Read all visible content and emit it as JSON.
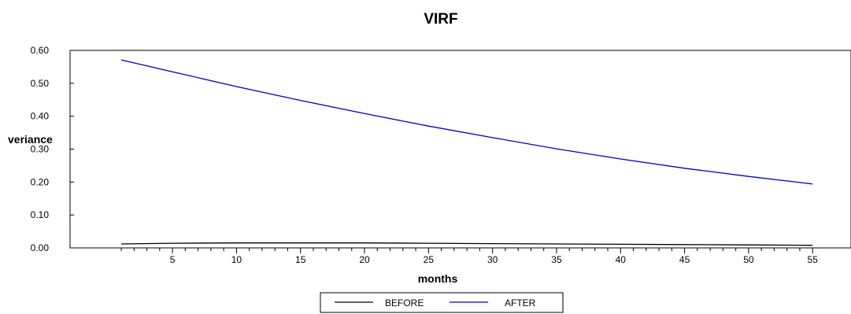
{
  "chart_data": {
    "type": "line",
    "title": "VIRF",
    "xlabel": "months",
    "ylabel": "veriance",
    "xlim": [
      -3,
      58
    ],
    "ylim": [
      0,
      0.6
    ],
    "x_ticks_labeled": [
      5,
      10,
      15,
      20,
      25,
      30,
      35,
      40,
      45,
      50,
      55
    ],
    "x_minor_ticks": [
      1,
      55
    ],
    "y_ticks": [
      0.0,
      0.1,
      0.2,
      0.3,
      0.4,
      0.5,
      0.6
    ],
    "y_tick_labels": [
      "0.00",
      "0.10",
      "0.20",
      "0.30",
      "0.40",
      "0.50",
      "0.60"
    ],
    "grid": false,
    "legend_position": "bottom-center",
    "series": [
      {
        "name": "BEFORE",
        "color": "#000000",
        "x": [
          1,
          5,
          10,
          15,
          20,
          25,
          30,
          35,
          40,
          45,
          50,
          55
        ],
        "values": [
          0.012,
          0.014,
          0.015,
          0.015,
          0.015,
          0.014,
          0.013,
          0.012,
          0.011,
          0.01,
          0.009,
          0.008
        ]
      },
      {
        "name": "AFTER",
        "color": "#0000cc",
        "x": [
          1,
          5,
          10,
          15,
          20,
          25,
          30,
          35,
          40,
          45,
          50,
          55
        ],
        "values": [
          0.571,
          0.535,
          0.49,
          0.448,
          0.408,
          0.37,
          0.335,
          0.301,
          0.27,
          0.242,
          0.217,
          0.194
        ]
      }
    ]
  }
}
